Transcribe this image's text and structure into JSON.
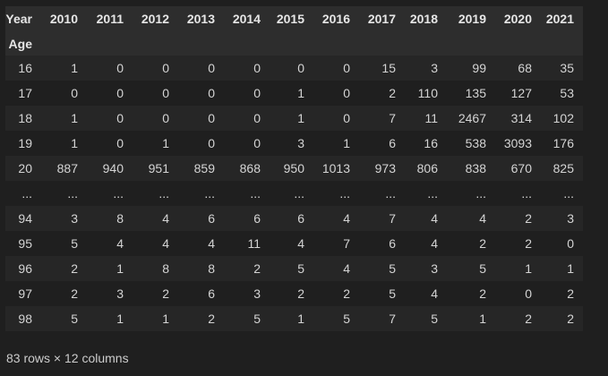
{
  "table": {
    "columns_name": "Year",
    "index_name": "Age",
    "columns": [
      "2010",
      "2011",
      "2012",
      "2013",
      "2014",
      "2015",
      "2016",
      "2017",
      "2018",
      "2019",
      "2020",
      "2021"
    ],
    "rows": [
      {
        "index": "16",
        "values": [
          "1",
          "0",
          "0",
          "0",
          "0",
          "0",
          "0",
          "15",
          "3",
          "99",
          "68",
          "35"
        ]
      },
      {
        "index": "17",
        "values": [
          "0",
          "0",
          "0",
          "0",
          "0",
          "1",
          "0",
          "2",
          "110",
          "135",
          "127",
          "53"
        ]
      },
      {
        "index": "18",
        "values": [
          "1",
          "0",
          "0",
          "0",
          "0",
          "1",
          "0",
          "7",
          "11",
          "2467",
          "314",
          "102"
        ]
      },
      {
        "index": "19",
        "values": [
          "1",
          "0",
          "1",
          "0",
          "0",
          "3",
          "1",
          "6",
          "16",
          "538",
          "3093",
          "176"
        ]
      },
      {
        "index": "20",
        "values": [
          "887",
          "940",
          "951",
          "859",
          "868",
          "950",
          "1013",
          "973",
          "806",
          "838",
          "670",
          "825"
        ]
      },
      {
        "index": "...",
        "values": [
          "...",
          "...",
          "...",
          "...",
          "...",
          "...",
          "...",
          "...",
          "...",
          "...",
          "...",
          "..."
        ]
      },
      {
        "index": "94",
        "values": [
          "3",
          "8",
          "4",
          "6",
          "6",
          "6",
          "4",
          "7",
          "4",
          "4",
          "2",
          "3"
        ]
      },
      {
        "index": "95",
        "values": [
          "5",
          "4",
          "4",
          "4",
          "11",
          "4",
          "7",
          "6",
          "4",
          "2",
          "2",
          "0"
        ]
      },
      {
        "index": "96",
        "values": [
          "2",
          "1",
          "8",
          "8",
          "2",
          "5",
          "4",
          "5",
          "3",
          "5",
          "1",
          "1"
        ]
      },
      {
        "index": "97",
        "values": [
          "2",
          "3",
          "2",
          "6",
          "3",
          "2",
          "2",
          "5",
          "4",
          "2",
          "0",
          "2"
        ]
      },
      {
        "index": "98",
        "values": [
          "5",
          "1",
          "1",
          "2",
          "5",
          "1",
          "5",
          "7",
          "5",
          "1",
          "2",
          "2"
        ]
      }
    ]
  },
  "shape_text": "83 rows × 12 columns"
}
